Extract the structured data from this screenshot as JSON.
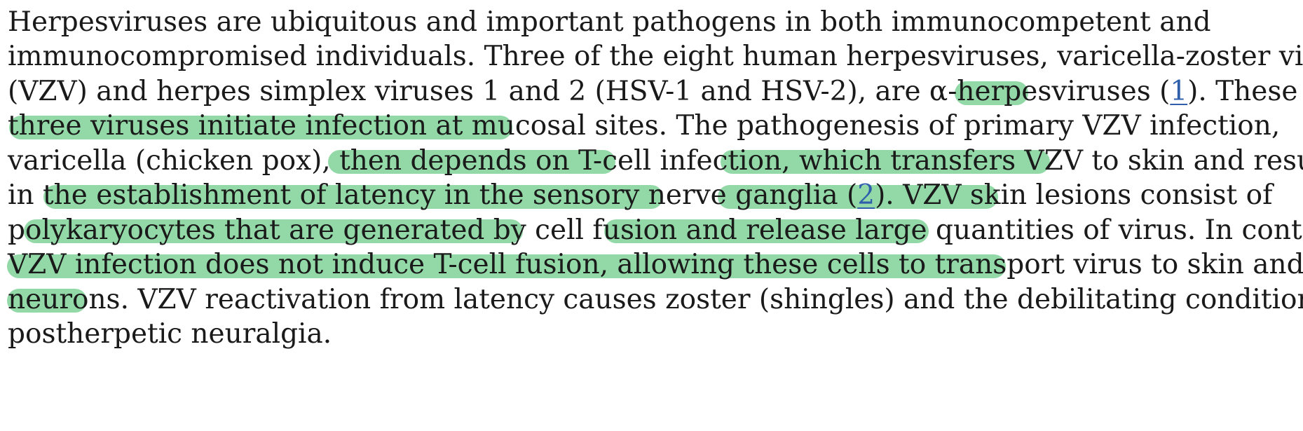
{
  "document": {
    "lines": [
      "Herpesviruses are ubiquitous and important pathogens in both immunocompetent and",
      "immunocompromised individuals. Three of the eight human herpesviruses, varicella-zoster virus",
      [
        "(VZV) and herpes simplex viruses 1 and 2 (HSV-1 and HSV-2), are α-herpesviruses (",
        "). These"
      ],
      "three viruses initiate infection at mucosal sites. The pathogenesis of primary VZV infection,",
      "varicella (chicken pox), then depends on T-cell infection, which transfers VZV to skin and results",
      [
        "in the establishment of latency in the sensory nerve ganglia (",
        "). VZV skin lesions consist of"
      ],
      "polykaryocytes that are generated by cell fusion and release large quantities of virus. In contrast,",
      "VZV infection does not induce T-cell fusion, allowing these cells to transport virus to skin and",
      "neurons. VZV reactivation from latency causes zoster (shingles) and the debilitating condition",
      "postherpetic neuralgia."
    ],
    "references": [
      "1",
      "2"
    ],
    "highlights": [
      "These three viruses initiate infection at mucosal sites",
      "depends on T-cell infection",
      "transfers VZV to skin and results in the establishment of latency in the sensory nerve ganglia",
      "VZV skin lesions consist of polykaryocytes that are generated by cell fusion",
      "release large quantities of virus",
      "VZV infection does not induce T-cell fusion, allowing these cells to transport virus to skin and neurons"
    ]
  },
  "colors": {
    "highlight": "#93d9a8",
    "link": "#2f5fab",
    "text": "#1a1a1a"
  }
}
